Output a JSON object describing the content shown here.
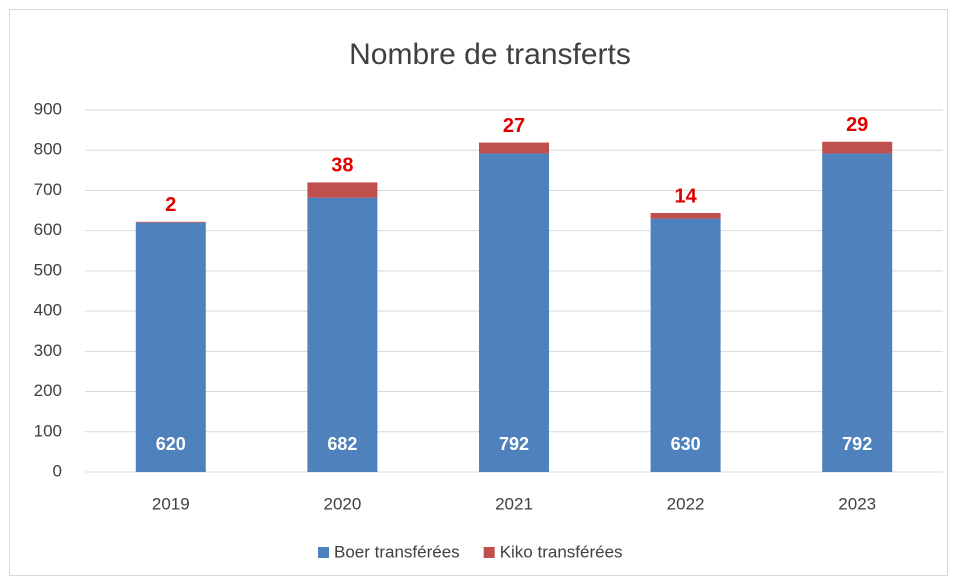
{
  "chart_data": {
    "type": "stacked_bar",
    "title": "Nombre de transferts",
    "categories": [
      "2019",
      "2020",
      "2021",
      "2022",
      "2023"
    ],
    "series": [
      {
        "name": "Boer transférées",
        "color": "#4f81bd",
        "values": [
          620,
          682,
          792,
          630,
          792
        ]
      },
      {
        "name": "Kiko transférées",
        "color": "#c0504d",
        "values": [
          2,
          38,
          27,
          14,
          29
        ]
      }
    ],
    "ylim": [
      0,
      900
    ],
    "yticks": [
      0,
      100,
      200,
      300,
      400,
      500,
      600,
      700,
      800,
      900
    ],
    "grid": true,
    "legend": "bottom"
  }
}
